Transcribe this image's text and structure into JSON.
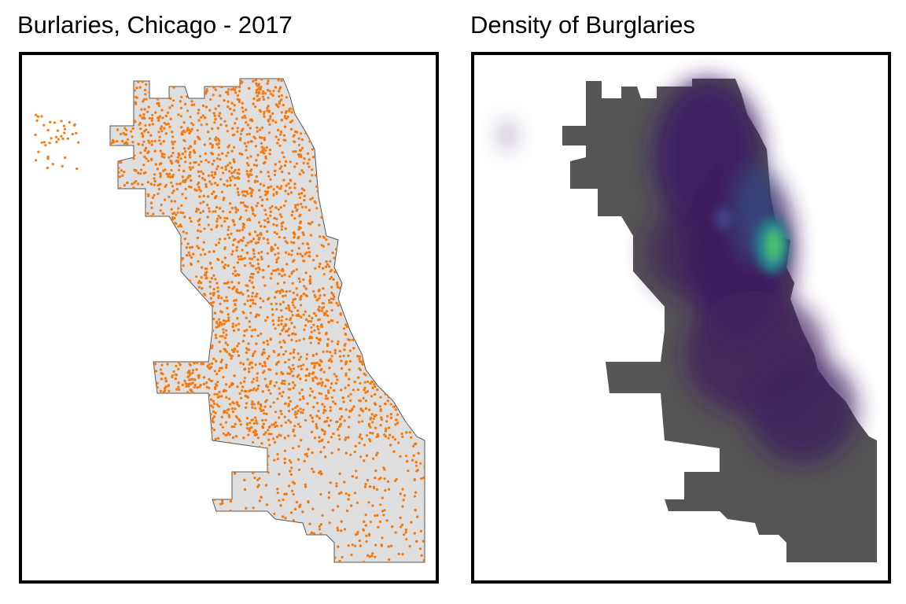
{
  "panels": [
    {
      "title": "Burlaries, Chicago - 2017"
    },
    {
      "title": "Density of Burglaries"
    }
  ]
}
